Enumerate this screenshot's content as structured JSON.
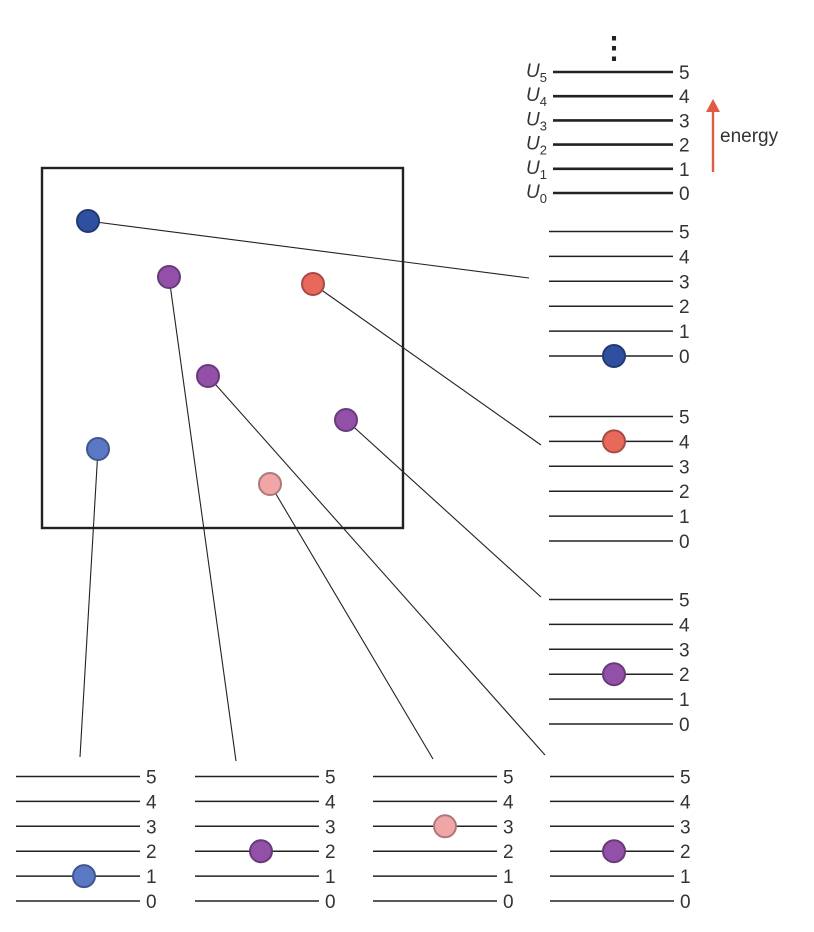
{
  "reference_ladder": {
    "continuation": "⋮",
    "levels": [
      {
        "symbol": "U",
        "sub": "0",
        "number": "0"
      },
      {
        "symbol": "U",
        "sub": "1",
        "number": "1"
      },
      {
        "symbol": "U",
        "sub": "2",
        "number": "2"
      },
      {
        "symbol": "U",
        "sub": "3",
        "number": "3"
      },
      {
        "symbol": "U",
        "sub": "4",
        "number": "4"
      },
      {
        "symbol": "U",
        "sub": "5",
        "number": "5"
      }
    ],
    "energy_label": "energy",
    "arrow_color": "#e05a44"
  },
  "particle_colors": {
    "dark_blue": "#2f4fa0",
    "light_blue": "#5a78c4",
    "purple": "#9250a8",
    "red": "#e8685c",
    "pink": "#f0a6a6"
  },
  "particles": [
    {
      "id": "dark-blue",
      "color": "dark_blue",
      "level": 0
    },
    {
      "id": "red",
      "color": "red",
      "level": 4
    },
    {
      "id": "purple-right",
      "color": "purple",
      "level": 2
    },
    {
      "id": "light-blue",
      "color": "light_blue",
      "level": 1
    },
    {
      "id": "purple-top",
      "color": "purple",
      "level": 2
    },
    {
      "id": "pink",
      "color": "pink",
      "level": 3
    },
    {
      "id": "purple-middle",
      "color": "purple",
      "level": 2
    }
  ],
  "level_numbers": [
    "0",
    "1",
    "2",
    "3",
    "4",
    "5"
  ]
}
